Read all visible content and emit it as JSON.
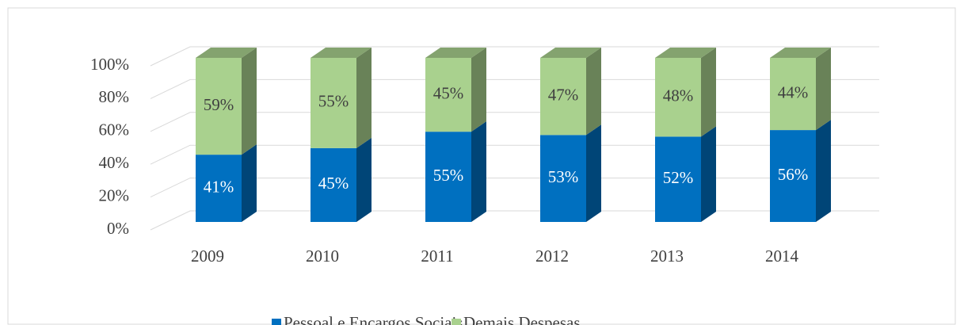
{
  "chart_data": {
    "type": "bar3d_stacked",
    "categories": [
      "2009",
      "2010",
      "2011",
      "2012",
      "2013",
      "2014"
    ],
    "series": [
      {
        "name": "Pessoal e Encargos Sociais",
        "color": "#0070c0",
        "values": [
          41,
          45,
          55,
          53,
          52,
          56
        ],
        "value_labels": [
          "41%",
          "45%",
          "55%",
          "53%",
          "52%",
          "56%"
        ]
      },
      {
        "name": "Demais Despesas",
        "color": "#a9d18e",
        "values": [
          59,
          55,
          45,
          47,
          48,
          44
        ],
        "value_labels": [
          "59%",
          "55%",
          "45%",
          "47%",
          "48%",
          "44%"
        ]
      }
    ],
    "ylim": [
      0,
      100
    ],
    "yticks": [
      {
        "value": 0,
        "label": "0%"
      },
      {
        "value": 20,
        "label": "20%"
      },
      {
        "value": 40,
        "label": "40%"
      },
      {
        "value": 60,
        "label": "60%"
      },
      {
        "value": 80,
        "label": "80%"
      },
      {
        "value": 100,
        "label": "100%"
      }
    ],
    "grid": true,
    "legend": "bottom"
  }
}
